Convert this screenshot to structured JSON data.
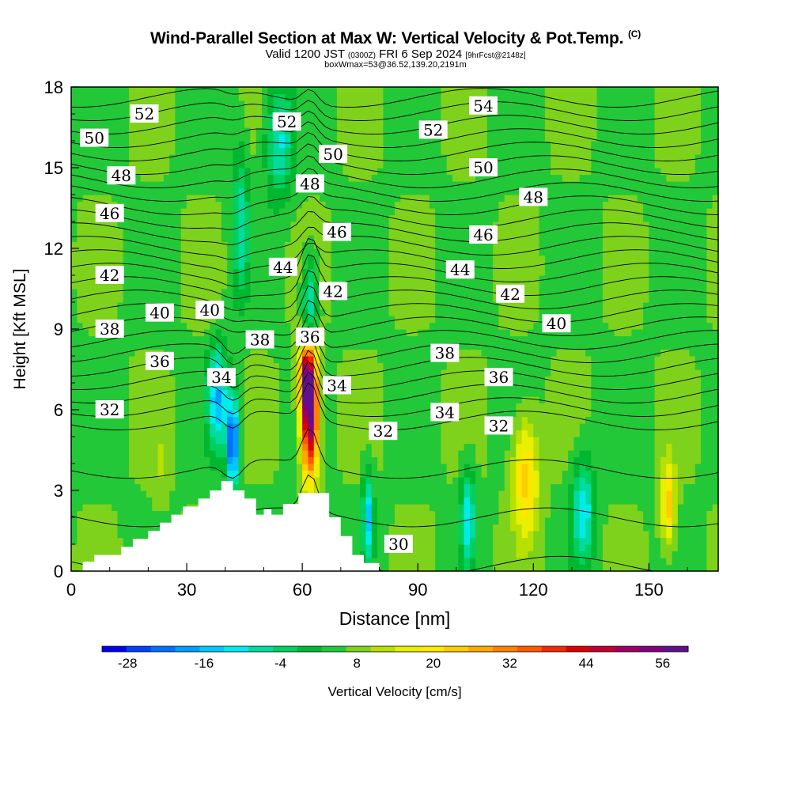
{
  "header": {
    "title": "Wind-Parallel Section at Max W: Vertical Velocity & Pot.Temp.",
    "title_mark": "(C)",
    "valid_main": "Valid 1200 JST",
    "valid_utc": "(0300Z)",
    "valid_date": "FRI 6 Sep 2024",
    "forecast": "[9hrFcst@2148z]",
    "box_info": "boxWmax=53@36.52,139.20,2191m"
  },
  "chart_data": {
    "type": "heatmap",
    "xlabel": "Distance [nm]",
    "ylabel": "Height [Kft MSL]",
    "xlim": [
      0,
      168
    ],
    "ylim": [
      0,
      18
    ],
    "x_ticks": [
      "0",
      "30",
      "60",
      "90",
      "120",
      "150"
    ],
    "y_ticks": [
      "0",
      "3",
      "6",
      "9",
      "12",
      "15",
      "18"
    ],
    "colorbar": {
      "label": "Vertical Velocity [cm/s]",
      "tick_labels": [
        "-28",
        "-16",
        "-4",
        "8",
        "20",
        "32",
        "44",
        "56"
      ],
      "range": [
        -32,
        60
      ],
      "colors": [
        "#0000ee",
        "#0040ff",
        "#0070ff",
        "#009dff",
        "#00c8ff",
        "#00ecec",
        "#00dca0",
        "#00d060",
        "#00b830",
        "#22c838",
        "#7ed21c",
        "#b8e000",
        "#e8f000",
        "#ffe800",
        "#ffcc00",
        "#ffa800",
        "#ff8000",
        "#ff5800",
        "#f02800",
        "#dc0000",
        "#c00030",
        "#a00060",
        "#800080",
        "#60108a"
      ]
    },
    "background_value": 6,
    "updrafts": [
      {
        "x": 62,
        "z": 5.8,
        "w": 58,
        "sx": 1.5,
        "sz": 1.6
      },
      {
        "x": 61,
        "z": 7.2,
        "w": 36,
        "sx": 1.4,
        "sz": 0.9
      },
      {
        "x": 118,
        "z": 3.5,
        "w": 24,
        "sx": 2.3,
        "sz": 1.5
      },
      {
        "x": 155,
        "z": 2.5,
        "w": 24,
        "sx": 1.3,
        "sz": 1.1
      },
      {
        "x": 23,
        "z": 3.8,
        "w": 10,
        "sx": 1.5,
        "sz": 1.0
      },
      {
        "x": 36,
        "z": 9.7,
        "w": 8,
        "sx": 2.0,
        "sz": 0.7
      }
    ],
    "downdrafts": [
      {
        "x": 42,
        "z": 4.8,
        "w": -28,
        "sx": 1.1,
        "sz": 1.2
      },
      {
        "x": 38,
        "z": 6.5,
        "w": -16,
        "sx": 1.8,
        "sz": 1.4
      },
      {
        "x": 77,
        "z": 2.0,
        "w": -14,
        "sx": 1.0,
        "sz": 1.2
      },
      {
        "x": 103,
        "z": 2.0,
        "w": -12,
        "sx": 1.3,
        "sz": 1.3
      },
      {
        "x": 133,
        "z": 2.3,
        "w": -12,
        "sx": 2.0,
        "sz": 1.4
      },
      {
        "x": 62,
        "z": 10.0,
        "w": -12,
        "sx": 1.3,
        "sz": 1.1
      },
      {
        "x": 54,
        "z": 16.0,
        "w": -10,
        "sx": 2.5,
        "sz": 1.5
      },
      {
        "x": 44,
        "z": 13.0,
        "w": -8,
        "sx": 1.5,
        "sz": 2.0
      }
    ],
    "terrain": [
      [
        0,
        0
      ],
      [
        3,
        0
      ],
      [
        3,
        0.35
      ],
      [
        6,
        0.35
      ],
      [
        6,
        0.6
      ],
      [
        13,
        0.6
      ],
      [
        13,
        0.9
      ],
      [
        16,
        0.9
      ],
      [
        16,
        1.2
      ],
      [
        20,
        1.2
      ],
      [
        20,
        1.5
      ],
      [
        23,
        1.5
      ],
      [
        23,
        1.8
      ],
      [
        26,
        1.8
      ],
      [
        26,
        2.1
      ],
      [
        29,
        2.1
      ],
      [
        29,
        2.4
      ],
      [
        33,
        2.4
      ],
      [
        33,
        2.7
      ],
      [
        36,
        2.7
      ],
      [
        36,
        3.0
      ],
      [
        39,
        3.0
      ],
      [
        39,
        3.35
      ],
      [
        42,
        3.35
      ],
      [
        42,
        3.0
      ],
      [
        45,
        3.0
      ],
      [
        45,
        2.7
      ],
      [
        48,
        2.7
      ],
      [
        48,
        2.1
      ],
      [
        50,
        2.1
      ],
      [
        50,
        2.3
      ],
      [
        52,
        2.3
      ],
      [
        52,
        2.1
      ],
      [
        55,
        2.1
      ],
      [
        55,
        2.5
      ],
      [
        59,
        2.5
      ],
      [
        59,
        2.9
      ],
      [
        67,
        2.9
      ],
      [
        67,
        2.0
      ],
      [
        70,
        2.0
      ],
      [
        70,
        1.3
      ],
      [
        73,
        1.3
      ],
      [
        73,
        0.6
      ],
      [
        76,
        0.6
      ],
      [
        76,
        0.3
      ],
      [
        80,
        0.3
      ],
      [
        80,
        0
      ],
      [
        168,
        0
      ]
    ],
    "isentropes": {
      "min": 30,
      "max": 57,
      "step": 1,
      "labels": [
        {
          "text": "52",
          "x": 19,
          "z": 17.0
        },
        {
          "text": "50",
          "x": 6,
          "z": 16.1
        },
        {
          "text": "48",
          "x": 13,
          "z": 14.7
        },
        {
          "text": "46",
          "x": 10,
          "z": 13.3
        },
        {
          "text": "42",
          "x": 10,
          "z": 11.0
        },
        {
          "text": "38",
          "x": 10,
          "z": 9.0
        },
        {
          "text": "32",
          "x": 10,
          "z": 6.0
        },
        {
          "text": "40",
          "x": 23,
          "z": 9.6
        },
        {
          "text": "40",
          "x": 36,
          "z": 9.7
        },
        {
          "text": "36",
          "x": 23,
          "z": 7.8
        },
        {
          "text": "34",
          "x": 39,
          "z": 7.2
        },
        {
          "text": "38",
          "x": 49,
          "z": 8.6
        },
        {
          "text": "36",
          "x": 62,
          "z": 8.7
        },
        {
          "text": "44",
          "x": 55,
          "z": 11.3
        },
        {
          "text": "42",
          "x": 68,
          "z": 10.4
        },
        {
          "text": "46",
          "x": 69,
          "z": 12.6
        },
        {
          "text": "48",
          "x": 62,
          "z": 14.4
        },
        {
          "text": "50",
          "x": 68,
          "z": 15.5
        },
        {
          "text": "52",
          "x": 56,
          "z": 16.7
        },
        {
          "text": "34",
          "x": 69,
          "z": 6.9
        },
        {
          "text": "32",
          "x": 81,
          "z": 5.2
        },
        {
          "text": "30",
          "x": 85,
          "z": 1.0
        },
        {
          "text": "54",
          "x": 107,
          "z": 17.3
        },
        {
          "text": "52",
          "x": 94,
          "z": 16.4
        },
        {
          "text": "50",
          "x": 107,
          "z": 15.0
        },
        {
          "text": "48",
          "x": 120,
          "z": 13.9
        },
        {
          "text": "46",
          "x": 107,
          "z": 12.5
        },
        {
          "text": "44",
          "x": 101,
          "z": 11.2
        },
        {
          "text": "42",
          "x": 114,
          "z": 10.3
        },
        {
          "text": "40",
          "x": 126,
          "z": 9.2
        },
        {
          "text": "38",
          "x": 97,
          "z": 8.1
        },
        {
          "text": "36",
          "x": 111,
          "z": 7.2
        },
        {
          "text": "34",
          "x": 97,
          "z": 5.9
        },
        {
          "text": "32",
          "x": 111,
          "z": 5.4
        }
      ]
    }
  }
}
